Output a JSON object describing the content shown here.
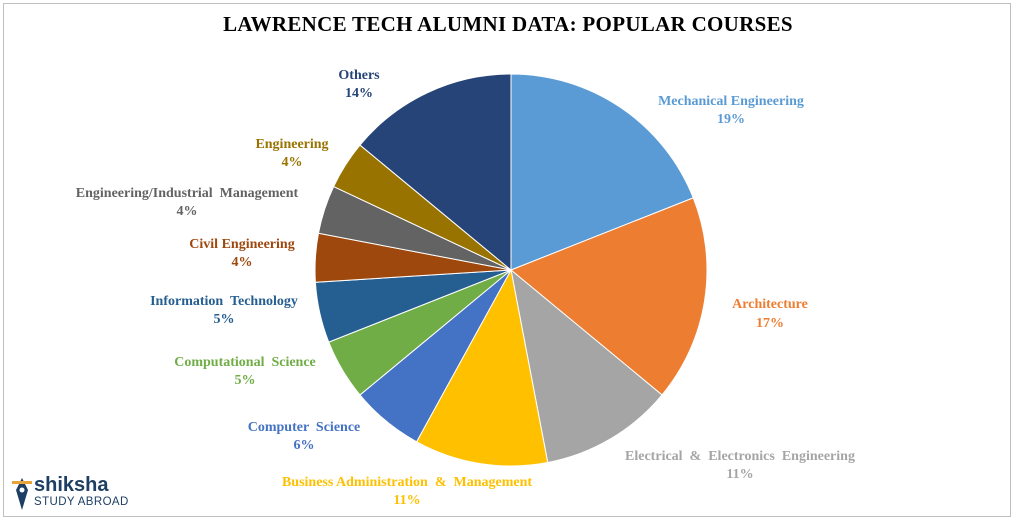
{
  "chart_data": {
    "type": "pie",
    "title": "LAWRENCE TECH ALUMNI DATA:  POPULAR COURSES",
    "slices": [
      {
        "label": "Mechanical Engineering",
        "value": 19,
        "value_label": "19%",
        "color": "#5b9bd5"
      },
      {
        "label": "Architecture",
        "value": 17,
        "value_label": "17%",
        "color": "#ed7d31"
      },
      {
        "label": "Electrical  &  Electronics  Engineering",
        "value": 11,
        "value_label": "11%",
        "color": "#a5a5a5"
      },
      {
        "label": "Business Administration  &  Management",
        "value": 11,
        "value_label": "11%",
        "color": "#ffc000"
      },
      {
        "label": "Computer  Science",
        "value": 6,
        "value_label": "6%",
        "color": "#4472c4"
      },
      {
        "label": "Computational  Science",
        "value": 5,
        "value_label": "5%",
        "color": "#70ad47"
      },
      {
        "label": "Information  Technology",
        "value": 5,
        "value_label": "5%",
        "color": "#255e91"
      },
      {
        "label": "Civil Engineering",
        "value": 4,
        "value_label": "4%",
        "color": "#9e480e"
      },
      {
        "label": "Engineering/Industrial  Management",
        "value": 4,
        "value_label": "4%",
        "color": "#636363"
      },
      {
        "label": "Engineering",
        "value": 4,
        "value_label": "4%",
        "color": "#997300"
      },
      {
        "label": "Others",
        "value": 14,
        "value_label": "14%",
        "color": "#264478"
      }
    ],
    "label_colors": [
      "#5b9bd5",
      "#ed7d31",
      "#a5a5a5",
      "#ffc000",
      "#4472c4",
      "#70ad47",
      "#255e91",
      "#9e480e",
      "#636363",
      "#997300",
      "#264478"
    ],
    "legend": "none (labels placed outside slices)"
  },
  "logo": {
    "brand": "shiksha",
    "subtitle": "STUDY ABROAD"
  }
}
